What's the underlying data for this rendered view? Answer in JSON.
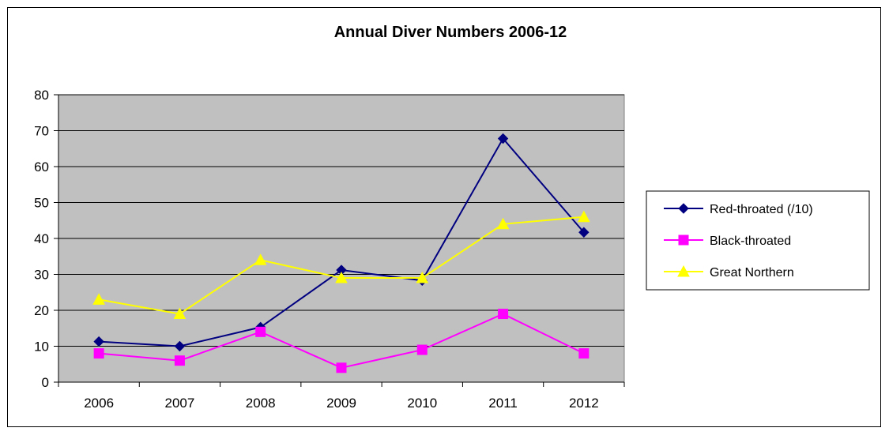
{
  "chart_data": {
    "type": "line",
    "title": "Annual Diver Numbers 2006-12",
    "xlabel": "",
    "ylabel": "",
    "categories": [
      "2006",
      "2007",
      "2008",
      "2009",
      "2010",
      "2011",
      "2012"
    ],
    "ylim": [
      0,
      80
    ],
    "yticks": [
      "0",
      "10",
      "20",
      "30",
      "40",
      "50",
      "60",
      "70",
      "80"
    ],
    "grid": true,
    "legend_position": "right",
    "plot_background": "#c0c0c0",
    "series": [
      {
        "name": "Red-throated (/10)",
        "color": "#000080",
        "marker": "diamond",
        "values": [
          11.3,
          10,
          15.3,
          31.2,
          28.3,
          67.8,
          41.7
        ]
      },
      {
        "name": "Black-throated",
        "color": "#ff00ff",
        "marker": "square",
        "values": [
          8,
          6,
          14,
          4,
          9,
          19,
          8
        ]
      },
      {
        "name": "Great Northern",
        "color": "#ffff00",
        "marker": "triangle",
        "values": [
          23,
          19,
          34,
          29,
          29,
          44,
          46
        ]
      }
    ]
  }
}
